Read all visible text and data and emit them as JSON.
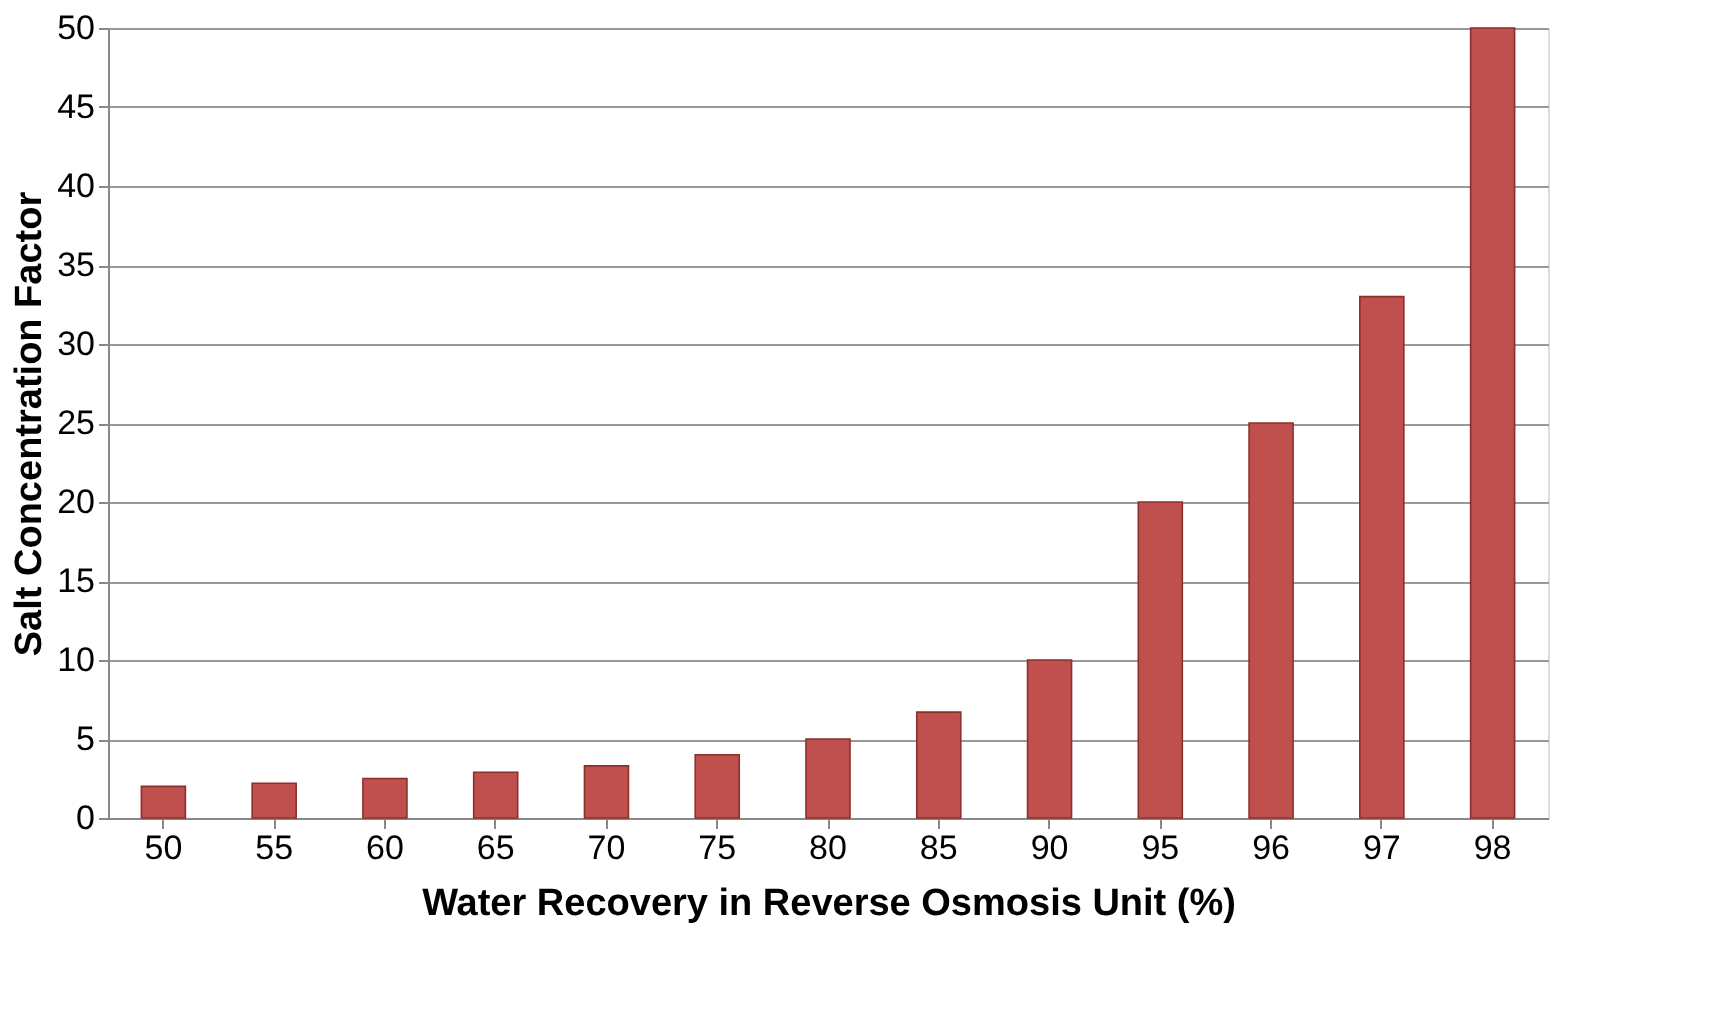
{
  "chart_data": {
    "type": "bar",
    "xlabel": "Water Recovery in Reverse Osmosis Unit (%)",
    "ylabel": "Salt Concentration Factor",
    "categories": [
      "50",
      "55",
      "60",
      "65",
      "70",
      "75",
      "80",
      "85",
      "90",
      "95",
      "96",
      "97",
      "98"
    ],
    "values": [
      2,
      2.2,
      2.5,
      2.9,
      3.3,
      4,
      5,
      6.7,
      10,
      20,
      25,
      33,
      50
    ],
    "color": "#c0504d",
    "ylim": [
      0,
      50
    ],
    "yticks": [
      0,
      5,
      10,
      15,
      20,
      25,
      30,
      35,
      40,
      45,
      50
    ],
    "grid": "y"
  }
}
